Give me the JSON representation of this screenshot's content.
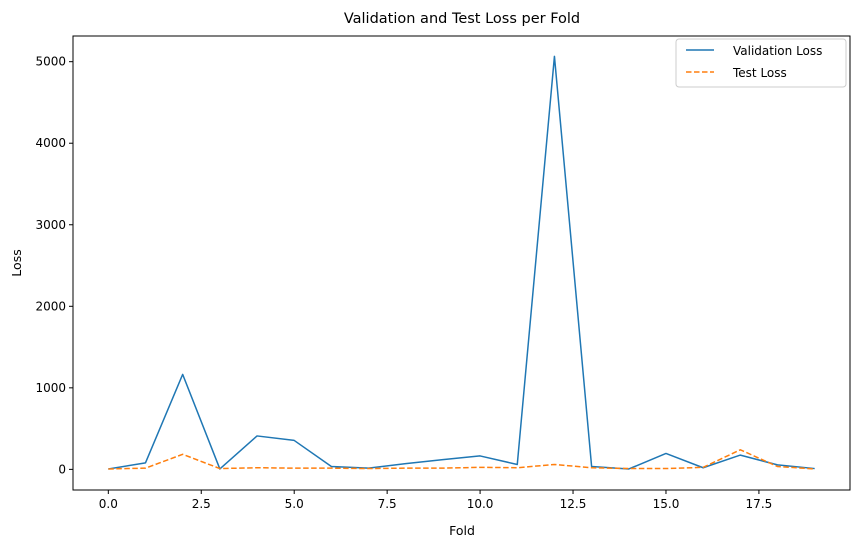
{
  "chart_data": {
    "type": "line",
    "title": "Validation and Test Loss per Fold",
    "xlabel": "Fold",
    "ylabel": "Loss",
    "xlim": [
      -0.95,
      19.95
    ],
    "ylim": [
      -253,
      5315
    ],
    "xticks": [
      0.0,
      2.5,
      5.0,
      7.5,
      10.0,
      12.5,
      15.0,
      17.5
    ],
    "xtick_labels": [
      "0.0",
      "2.5",
      "5.0",
      "7.5",
      "10.0",
      "12.5",
      "15.0",
      "17.5"
    ],
    "yticks": [
      0,
      1000,
      2000,
      3000,
      4000,
      5000
    ],
    "ytick_labels": [
      "0",
      "1000",
      "2000",
      "3000",
      "4000",
      "5000"
    ],
    "x": [
      0,
      1,
      2,
      3,
      4,
      5,
      6,
      7,
      8,
      9,
      10,
      11,
      12,
      13,
      14,
      15,
      16,
      17,
      18,
      19
    ],
    "series": [
      {
        "name": "Validation Loss",
        "color": "#1f77b4",
        "style": "solid",
        "values": [
          5,
          80,
          1165,
          5,
          410,
          355,
          35,
          15,
          70,
          120,
          165,
          60,
          5065,
          35,
          5,
          195,
          20,
          175,
          55,
          10
        ]
      },
      {
        "name": "Test Loss",
        "color": "#ff7f0e",
        "style": "dashed",
        "values": [
          5,
          15,
          185,
          10,
          20,
          15,
          15,
          10,
          15,
          15,
          25,
          20,
          60,
          20,
          10,
          10,
          25,
          240,
          35,
          5
        ]
      }
    ],
    "legend_position": "upper right",
    "grid": false
  }
}
